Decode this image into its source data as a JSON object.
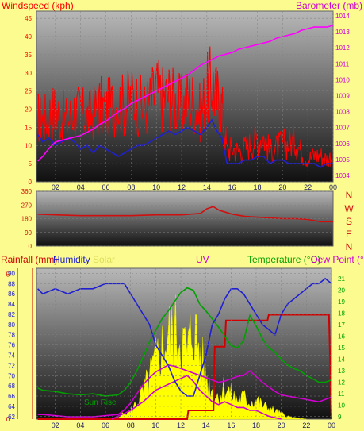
{
  "colors": {
    "background": "#fbfb8f",
    "wind": "#ff0000",
    "wind_avg": "#2020d0",
    "barometer": "#ff00ff",
    "direction": "#d01010",
    "rain": "#d00000",
    "humidity": "#2020d0",
    "solar": "#ffff00",
    "uv": "#d000d0",
    "temperature": "#00a000",
    "dewpoint": "#d000d0",
    "sunrise": "#00a000"
  },
  "chart_data": [
    {
      "type": "line",
      "title": "",
      "xlabel": "",
      "ylabel_left": "Windspeed (kph)",
      "ylabel_right": "Barometer (mb)",
      "x_ticks": [
        "02",
        "04",
        "06",
        "08",
        "10",
        "12",
        "14",
        "16",
        "18",
        "20",
        "22",
        "00"
      ],
      "y_ticks_left": [
        "0",
        "5",
        "10",
        "15",
        "20",
        "25",
        "30",
        "35",
        "40",
        "45"
      ],
      "y_ticks_right": [
        "1004",
        "1005",
        "1006",
        "1007",
        "1008",
        "1009",
        "1010",
        "1011",
        "1012",
        "1013",
        "1014"
      ],
      "ylim_left": [
        0,
        47
      ],
      "ylim_right": [
        1003.6,
        1014.3
      ],
      "xlim": [
        0.5,
        24
      ],
      "series": [
        {
          "name": "Windspeed",
          "axis": "left",
          "color": "#ff0000",
          "style": "spiky",
          "x": [
            0.6,
            1,
            1.5,
            2,
            2.5,
            3,
            3.5,
            4,
            4.5,
            5,
            5.5,
            6,
            6.5,
            7,
            7.5,
            8,
            8.5,
            9,
            9.5,
            10,
            10.5,
            11,
            11.5,
            12,
            12.5,
            13,
            13.5,
            14,
            14.4,
            14.8,
            15.2,
            15.6,
            16,
            16.5,
            17,
            17.5,
            18,
            18.5,
            19,
            19.5,
            20,
            20.5,
            21,
            21.5,
            22,
            22.5,
            23,
            23.5,
            24
          ],
          "y": [
            17,
            16,
            18,
            19,
            17,
            16,
            19,
            18,
            17,
            18,
            20,
            19,
            20,
            21,
            20,
            22,
            21,
            19,
            21,
            24,
            22,
            23,
            21,
            20,
            22,
            21,
            18,
            24,
            26,
            22,
            20,
            8,
            9,
            8,
            9,
            10,
            11,
            12,
            8,
            9,
            10,
            10,
            11,
            8,
            6,
            7,
            7,
            6,
            7
          ]
        },
        {
          "name": "Avg Windspeed",
          "axis": "left",
          "color": "#2020d0",
          "x": [
            0.6,
            1,
            1.5,
            2,
            2.5,
            3,
            3.5,
            4,
            4.5,
            5,
            5.5,
            6,
            6.5,
            7,
            7.5,
            8,
            8.5,
            9,
            9.5,
            10,
            10.5,
            11,
            11.5,
            12,
            12.5,
            13,
            13.5,
            14,
            14.4,
            14.8,
            15.2,
            15.6,
            16,
            16.5,
            17,
            17.5,
            18,
            18.5,
            19,
            19.5,
            20,
            20.5,
            21,
            21.5,
            22,
            22.5,
            23,
            23.5,
            24
          ],
          "y": [
            13,
            11,
            12,
            10,
            11,
            12,
            11,
            9,
            10,
            8,
            10,
            9,
            8,
            7,
            8,
            9,
            10,
            10,
            11,
            12,
            13,
            14,
            13,
            14,
            15,
            14,
            13,
            15,
            17,
            14,
            12,
            5,
            5,
            5,
            6,
            6,
            7,
            7,
            5,
            6,
            6,
            5,
            5,
            5,
            5,
            5,
            4,
            5,
            5
          ]
        },
        {
          "name": "Barometer",
          "axis": "right",
          "color": "#ff00ff",
          "x": [
            0.6,
            1,
            1.5,
            2,
            2.5,
            3,
            3.5,
            4,
            4.5,
            5,
            5.5,
            6,
            6.5,
            7,
            7.5,
            8,
            8.5,
            9,
            9.5,
            10,
            10.5,
            11,
            11.5,
            12,
            12.5,
            13,
            13.5,
            14,
            14.5,
            15,
            15.5,
            16,
            16.5,
            17,
            17.5,
            18,
            18.5,
            19,
            19.5,
            20,
            20.5,
            21,
            21.5,
            22,
            22.5,
            23,
            23.5,
            24
          ],
          "y": [
            1004.9,
            1005.2,
            1005.7,
            1006.1,
            1006.2,
            1006.3,
            1006.4,
            1006.5,
            1006.7,
            1006.9,
            1007.2,
            1007.4,
            1007.7,
            1008.0,
            1008.2,
            1008.5,
            1008.7,
            1008.9,
            1009.1,
            1009.3,
            1009.5,
            1009.7,
            1009.9,
            1010.1,
            1010.3,
            1010.6,
            1010.9,
            1011.1,
            1011.3,
            1011.5,
            1011.6,
            1011.7,
            1011.9,
            1012.0,
            1012.1,
            1012.2,
            1012.3,
            1012.4,
            1012.6,
            1012.7,
            1012.8,
            1012.9,
            1013.1,
            1013.2,
            1013.3,
            1013.3,
            1013.3,
            1013.4
          ]
        }
      ]
    },
    {
      "type": "line",
      "title": "",
      "y_ticks_left": [
        "0",
        "90",
        "180",
        "270",
        "360"
      ],
      "compass_labels": [
        "N",
        "W",
        "S",
        "E",
        "N"
      ],
      "ylim": [
        0,
        360
      ],
      "xlim": [
        0.5,
        24
      ],
      "series": [
        {
          "name": "Wind Direction",
          "color": "#d01010",
          "x": [
            0.6,
            2,
            4,
            6,
            8,
            10,
            12,
            13.5,
            14,
            14.5,
            15,
            16,
            17,
            18,
            19,
            20,
            21,
            22,
            23,
            24
          ],
          "y": [
            210,
            205,
            200,
            200,
            200,
            205,
            205,
            215,
            245,
            260,
            235,
            210,
            195,
            190,
            185,
            180,
            180,
            175,
            160,
            160
          ]
        }
      ]
    },
    {
      "type": "line",
      "title": "",
      "labels": [
        "Rainfall (mm)",
        "Humidity",
        "Solar",
        "UV",
        "Temperature (°C)",
        "Dew Point (°C)"
      ],
      "annotation": "Sun Rise",
      "x_ticks": [
        "02",
        "04",
        "06",
        "08",
        "10",
        "12",
        "14",
        "16",
        "18",
        "20",
        "22",
        "00"
      ],
      "y_ticks_rain": [
        "0",
        "5"
      ],
      "y_ticks_humidity": [
        "62",
        "64",
        "66",
        "68",
        "70",
        "72",
        "74",
        "76",
        "78",
        "80",
        "82",
        "84",
        "86",
        "88",
        "90"
      ],
      "y_ticks_temp": [
        "9",
        "10",
        "11",
        "12",
        "13",
        "14",
        "15",
        "16",
        "17",
        "18",
        "19",
        "20",
        "21"
      ],
      "ylim_humidity": [
        61.5,
        91
      ],
      "ylim_temp": [
        8.8,
        21.9
      ],
      "ylim_rain": [
        0,
        5.2
      ],
      "xlim": [
        0.5,
        24
      ],
      "series": [
        {
          "name": "Humidity",
          "axis": "humidity",
          "color": "#2020d0",
          "x": [
            0.6,
            1,
            2,
            3,
            4,
            5,
            6,
            7,
            7.5,
            8,
            8.5,
            9,
            9.5,
            10,
            10.5,
            11,
            11.5,
            12,
            12.5,
            13,
            13.5,
            14,
            14.5,
            15,
            15.5,
            16,
            16.5,
            17,
            17.5,
            18,
            18.5,
            19,
            19.5,
            20,
            20.5,
            21,
            21.5,
            22,
            22.5,
            23,
            23.5,
            24
          ],
          "y": [
            87,
            86,
            87,
            86,
            87,
            87,
            88,
            88,
            88,
            86,
            84,
            82,
            80,
            76,
            74,
            72,
            69,
            67,
            66,
            66,
            70,
            74,
            80,
            82,
            85,
            87,
            87,
            86,
            84,
            82,
            80,
            79,
            78,
            82,
            84,
            85,
            86,
            87,
            88,
            88,
            89,
            88
          ]
        },
        {
          "name": "Temperature",
          "axis": "temp",
          "color": "#00a000",
          "x": [
            0.6,
            1,
            2,
            3,
            4,
            5,
            6,
            7,
            7.5,
            8,
            8.5,
            9,
            9.5,
            10,
            10.5,
            11,
            11.5,
            12,
            12.5,
            13,
            13.5,
            14,
            14.5,
            15,
            15.5,
            16,
            16.5,
            17,
            17.5,
            18,
            18.5,
            19,
            19.5,
            20,
            20.5,
            21,
            21.5,
            22,
            22.5,
            23,
            23.5,
            24
          ],
          "y": [
            11.5,
            11.3,
            11.2,
            11.0,
            10.9,
            11.0,
            10.8,
            10.9,
            11.3,
            12.0,
            13.0,
            14.2,
            15.5,
            16.5,
            17.5,
            18.2,
            19.0,
            19.8,
            20.2,
            20.0,
            18.8,
            18.2,
            17.5,
            16.8,
            16.0,
            15.2,
            15.0,
            15.6,
            17.8,
            16.9,
            15.8,
            15.0,
            14.6,
            14.0,
            13.5,
            13.2,
            13.0,
            12.6,
            12.3,
            12.0,
            12.0,
            12.2
          ]
        },
        {
          "name": "Dew Point",
          "axis": "temp",
          "color": "#d000d0",
          "x": [
            0.6,
            1,
            2,
            3,
            4,
            5,
            6,
            7,
            7.5,
            8,
            8.5,
            9,
            9.5,
            10,
            10.5,
            11,
            11.5,
            12,
            12.5,
            13,
            13.5,
            14,
            14.5,
            15,
            15.5,
            16,
            16.5,
            17,
            17.5,
            18,
            18.5,
            19,
            19.5,
            20,
            20.5,
            21,
            21.5,
            22,
            22.5,
            23,
            23.5,
            24
          ],
          "y": [
            9.2,
            9.2,
            9.1,
            9.0,
            9.0,
            9.0,
            9.1,
            9.2,
            9.6,
            10.2,
            11.0,
            11.8,
            12.4,
            12.9,
            13.2,
            13.5,
            13.4,
            13.2,
            13.0,
            12.8,
            12.6,
            12.4,
            12.2,
            12.0,
            12.1,
            12.3,
            12.5,
            12.6,
            13.0,
            12.5,
            12.0,
            11.6,
            11.2,
            10.9,
            10.8,
            10.7,
            10.6,
            10.5,
            10.4,
            10.3,
            10.5,
            10.7
          ]
        },
        {
          "name": "Rainfall",
          "axis": "rain",
          "color": "#d00000",
          "style": "step",
          "x": [
            0.6,
            12.5,
            12.6,
            14.6,
            14.7,
            15.5,
            15.6,
            18.9,
            19.0,
            23.8,
            24
          ],
          "y": [
            0,
            0,
            0.3,
            0.3,
            2.5,
            2.5,
            3.4,
            3.4,
            3.6,
            3.6,
            0
          ]
        },
        {
          "name": "Solar",
          "axis": "rain",
          "color": "#ffff00",
          "style": "filled",
          "x": [
            6.5,
            7,
            8,
            8.5,
            9,
            9.5,
            10,
            10.5,
            11,
            11.5,
            12,
            12.5,
            13,
            13.5,
            14,
            14.5,
            15,
            15.5,
            16,
            16.5,
            17,
            17.5,
            18,
            18.5,
            19,
            19.5,
            20,
            20.5,
            21,
            22
          ],
          "y": [
            0,
            0.1,
            0.3,
            0.6,
            1.0,
            1.5,
            2.1,
            2.6,
            3.0,
            3.2,
            3.0,
            2.4,
            3.4,
            2.5,
            1.6,
            1.0,
            0.8,
            1.2,
            0.9,
            0.7,
            0.8,
            0.6,
            0.7,
            0.5,
            0.4,
            0.3,
            0.2,
            0.1,
            0.05,
            0
          ]
        },
        {
          "name": "UV",
          "axis": "rain",
          "color": "#d000d0",
          "x": [
            6.5,
            7,
            8,
            9,
            10,
            11,
            12,
            12.5,
            13,
            13.5,
            14,
            14.5,
            15,
            15.5,
            16,
            16.5,
            17,
            17.5,
            18,
            18.5,
            19,
            19.5,
            20
          ],
          "y": [
            0,
            0.1,
            0.3,
            0.6,
            1.0,
            1.2,
            1.4,
            1.5,
            1.3,
            1.0,
            0.8,
            0.6,
            0.5,
            0.6,
            0.5,
            0.4,
            0.4,
            0.3,
            0.3,
            0.2,
            0.1,
            0.05,
            0
          ]
        }
      ]
    }
  ]
}
